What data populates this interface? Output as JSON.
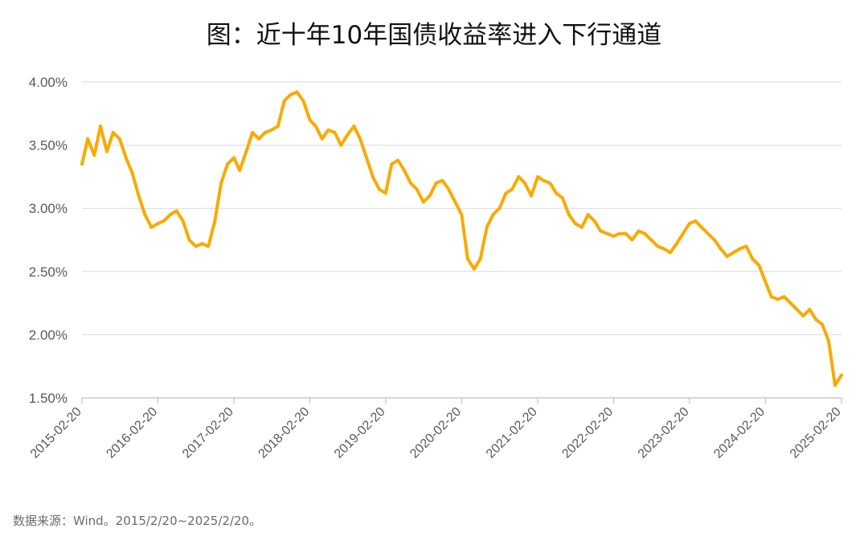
{
  "title": "图：近十年10年国债收益率进入下行通道",
  "source": "数据来源：Wind。2015/2/20~2025/2/20。",
  "colors": {
    "line": "#F9AA00",
    "grid": "#D9D9D9",
    "axis": "#BFBFBF",
    "text": "#595959"
  },
  "chart_data": {
    "type": "line",
    "title": "图：近十年10年国债收益率进入下行通道",
    "xlabel": "",
    "ylabel": "",
    "ylim": [
      1.5,
      4.0
    ],
    "yticks": [
      "1.50%",
      "2.00%",
      "2.50%",
      "3.00%",
      "3.50%",
      "4.00%"
    ],
    "xticks": [
      "2015-02-20",
      "2016-02-20",
      "2017-02-20",
      "2018-02-20",
      "2019-02-20",
      "2020-02-20",
      "2021-02-20",
      "2022-02-20",
      "2023-02-20",
      "2024-02-20",
      "2025-02-20"
    ],
    "grid": "horizontal",
    "legend": "none",
    "series": [
      {
        "x": [
          "2015-02-20",
          "2015-03-20",
          "2015-04-20",
          "2015-05-20",
          "2015-06-20",
          "2015-07-20",
          "2015-08-20",
          "2015-09-20",
          "2015-10-20",
          "2015-11-20",
          "2015-12-20",
          "2016-01-20",
          "2016-02-20",
          "2016-03-20",
          "2016-04-20",
          "2016-05-20",
          "2016-06-20",
          "2016-07-20",
          "2016-08-20",
          "2016-09-20",
          "2016-10-20",
          "2016-11-20",
          "2016-12-20",
          "2017-01-20",
          "2017-02-20",
          "2017-03-20",
          "2017-04-20",
          "2017-05-20",
          "2017-06-20",
          "2017-07-20",
          "2017-08-20",
          "2017-09-20",
          "2017-10-20",
          "2017-11-20",
          "2017-12-20",
          "2018-01-20",
          "2018-02-20",
          "2018-03-20",
          "2018-04-20",
          "2018-05-20",
          "2018-06-20",
          "2018-07-20",
          "2018-08-20",
          "2018-09-20",
          "2018-10-20",
          "2018-11-20",
          "2018-12-20",
          "2019-01-20",
          "2019-02-20",
          "2019-03-20",
          "2019-04-20",
          "2019-05-20",
          "2019-06-20",
          "2019-07-20",
          "2019-08-20",
          "2019-09-20",
          "2019-10-20",
          "2019-11-20",
          "2019-12-20",
          "2020-01-20",
          "2020-02-20",
          "2020-03-20",
          "2020-04-20",
          "2020-05-20",
          "2020-06-20",
          "2020-07-20",
          "2020-08-20",
          "2020-09-20",
          "2020-10-20",
          "2020-11-20",
          "2020-12-20",
          "2021-01-20",
          "2021-02-20",
          "2021-03-20",
          "2021-04-20",
          "2021-05-20",
          "2021-06-20",
          "2021-07-20",
          "2021-08-20",
          "2021-09-20",
          "2021-10-20",
          "2021-11-20",
          "2021-12-20",
          "2022-01-20",
          "2022-02-20",
          "2022-03-20",
          "2022-04-20",
          "2022-05-20",
          "2022-06-20",
          "2022-07-20",
          "2022-08-20",
          "2022-09-20",
          "2022-10-20",
          "2022-11-20",
          "2022-12-20",
          "2023-01-20",
          "2023-02-20",
          "2023-03-20",
          "2023-04-20",
          "2023-05-20",
          "2023-06-20",
          "2023-07-20",
          "2023-08-20",
          "2023-09-20",
          "2023-10-20",
          "2023-11-20",
          "2023-12-20",
          "2024-01-20",
          "2024-02-20",
          "2024-03-20",
          "2024-04-20",
          "2024-05-20",
          "2024-06-20",
          "2024-07-20",
          "2024-08-20",
          "2024-09-20",
          "2024-10-20",
          "2024-11-20",
          "2024-12-20",
          "2025-01-20",
          "2025-02-20"
        ],
        "values": [
          3.35,
          3.55,
          3.42,
          3.65,
          3.45,
          3.6,
          3.55,
          3.4,
          3.28,
          3.1,
          2.95,
          2.85,
          2.88,
          2.9,
          2.95,
          2.98,
          2.9,
          2.75,
          2.7,
          2.72,
          2.7,
          2.9,
          3.2,
          3.35,
          3.4,
          3.3,
          3.45,
          3.6,
          3.55,
          3.6,
          3.62,
          3.65,
          3.85,
          3.9,
          3.92,
          3.85,
          3.7,
          3.65,
          3.55,
          3.62,
          3.6,
          3.5,
          3.58,
          3.65,
          3.55,
          3.4,
          3.25,
          3.15,
          3.12,
          3.35,
          3.38,
          3.3,
          3.2,
          3.15,
          3.05,
          3.1,
          3.2,
          3.22,
          3.15,
          3.05,
          2.95,
          2.6,
          2.52,
          2.6,
          2.85,
          2.95,
          3.0,
          3.12,
          3.15,
          3.25,
          3.2,
          3.1,
          3.25,
          3.22,
          3.2,
          3.12,
          3.08,
          2.95,
          2.88,
          2.85,
          2.95,
          2.9,
          2.82,
          2.8,
          2.78,
          2.8,
          2.8,
          2.75,
          2.82,
          2.8,
          2.75,
          2.7,
          2.68,
          2.65,
          2.72,
          2.8,
          2.88,
          2.9,
          2.85,
          2.8,
          2.75,
          2.68,
          2.62,
          2.65,
          2.68,
          2.7,
          2.6,
          2.55,
          2.42,
          2.3,
          2.28,
          2.3,
          2.25,
          2.2,
          2.15,
          2.2,
          2.12,
          2.08,
          1.95,
          1.6,
          1.68
        ]
      }
    ]
  }
}
